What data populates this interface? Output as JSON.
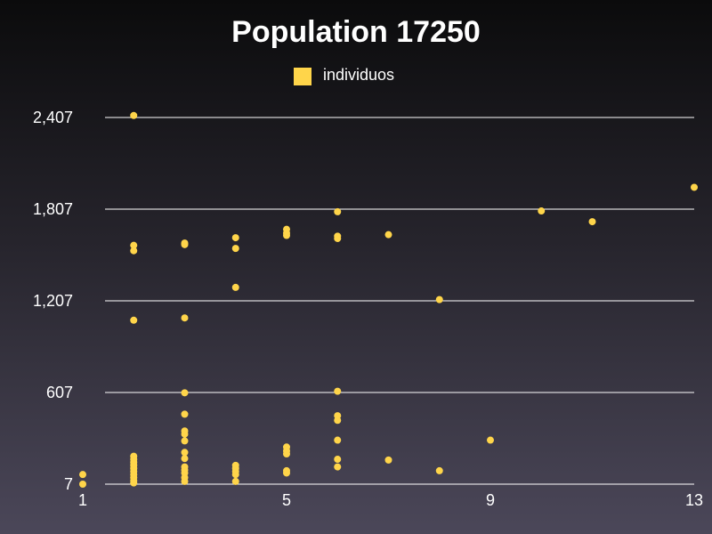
{
  "chart_data": {
    "type": "scatter",
    "title": "Population 17250",
    "legend": {
      "position": "top-center",
      "entries": [
        {
          "name": "individuos",
          "color": "#ffd54a"
        }
      ]
    },
    "xlim": [
      1,
      13
    ],
    "ylim": [
      7,
      2407
    ],
    "x_ticks": [
      "1",
      "5",
      "9",
      "13"
    ],
    "x_tick_values": [
      1,
      5,
      9,
      13
    ],
    "y_ticks": [
      "2,407",
      "1,807",
      "1,207",
      "607",
      "7"
    ],
    "y_tick_values": [
      2407,
      1807,
      1207,
      607,
      7
    ],
    "grid": {
      "horizontal": true,
      "vertical": false
    },
    "series": [
      {
        "name": "individuos",
        "color": "#ffd54a",
        "points": [
          {
            "x": 1,
            "y": 70
          },
          {
            "x": 1,
            "y": 7
          },
          {
            "x": 2,
            "y": 2420
          },
          {
            "x": 2,
            "y": 1570
          },
          {
            "x": 2,
            "y": 1535
          },
          {
            "x": 2,
            "y": 1080
          },
          {
            "x": 2,
            "y": 190
          },
          {
            "x": 2,
            "y": 170
          },
          {
            "x": 2,
            "y": 150
          },
          {
            "x": 2,
            "y": 130
          },
          {
            "x": 2,
            "y": 110
          },
          {
            "x": 2,
            "y": 90
          },
          {
            "x": 2,
            "y": 70
          },
          {
            "x": 2,
            "y": 50
          },
          {
            "x": 2,
            "y": 30
          },
          {
            "x": 2,
            "y": 15
          },
          {
            "x": 3,
            "y": 1585
          },
          {
            "x": 3,
            "y": 1575
          },
          {
            "x": 3,
            "y": 1095
          },
          {
            "x": 3,
            "y": 605
          },
          {
            "x": 3,
            "y": 465
          },
          {
            "x": 3,
            "y": 355
          },
          {
            "x": 3,
            "y": 335
          },
          {
            "x": 3,
            "y": 290
          },
          {
            "x": 3,
            "y": 215
          },
          {
            "x": 3,
            "y": 175
          },
          {
            "x": 3,
            "y": 120
          },
          {
            "x": 3,
            "y": 100
          },
          {
            "x": 3,
            "y": 80
          },
          {
            "x": 3,
            "y": 50
          },
          {
            "x": 3,
            "y": 25
          },
          {
            "x": 4,
            "y": 1620
          },
          {
            "x": 4,
            "y": 1550
          },
          {
            "x": 4,
            "y": 1295
          },
          {
            "x": 4,
            "y": 130
          },
          {
            "x": 4,
            "y": 110
          },
          {
            "x": 4,
            "y": 90
          },
          {
            "x": 4,
            "y": 70
          },
          {
            "x": 4,
            "y": 25
          },
          {
            "x": 5,
            "y": 1675
          },
          {
            "x": 5,
            "y": 1650
          },
          {
            "x": 5,
            "y": 1635
          },
          {
            "x": 5,
            "y": 250
          },
          {
            "x": 5,
            "y": 225
          },
          {
            "x": 5,
            "y": 205
          },
          {
            "x": 5,
            "y": 95
          },
          {
            "x": 5,
            "y": 80
          },
          {
            "x": 6,
            "y": 1790
          },
          {
            "x": 6,
            "y": 1630
          },
          {
            "x": 6,
            "y": 1615
          },
          {
            "x": 6,
            "y": 615
          },
          {
            "x": 6,
            "y": 455
          },
          {
            "x": 6,
            "y": 425
          },
          {
            "x": 6,
            "y": 295
          },
          {
            "x": 6,
            "y": 170
          },
          {
            "x": 6,
            "y": 120
          },
          {
            "x": 7,
            "y": 1640
          },
          {
            "x": 7,
            "y": 165
          },
          {
            "x": 8,
            "y": 1215
          },
          {
            "x": 8,
            "y": 95
          },
          {
            "x": 9,
            "y": 295
          },
          {
            "x": 10,
            "y": 1795
          },
          {
            "x": 11,
            "y": 1725
          },
          {
            "x": 13,
            "y": 1950
          }
        ]
      }
    ]
  }
}
